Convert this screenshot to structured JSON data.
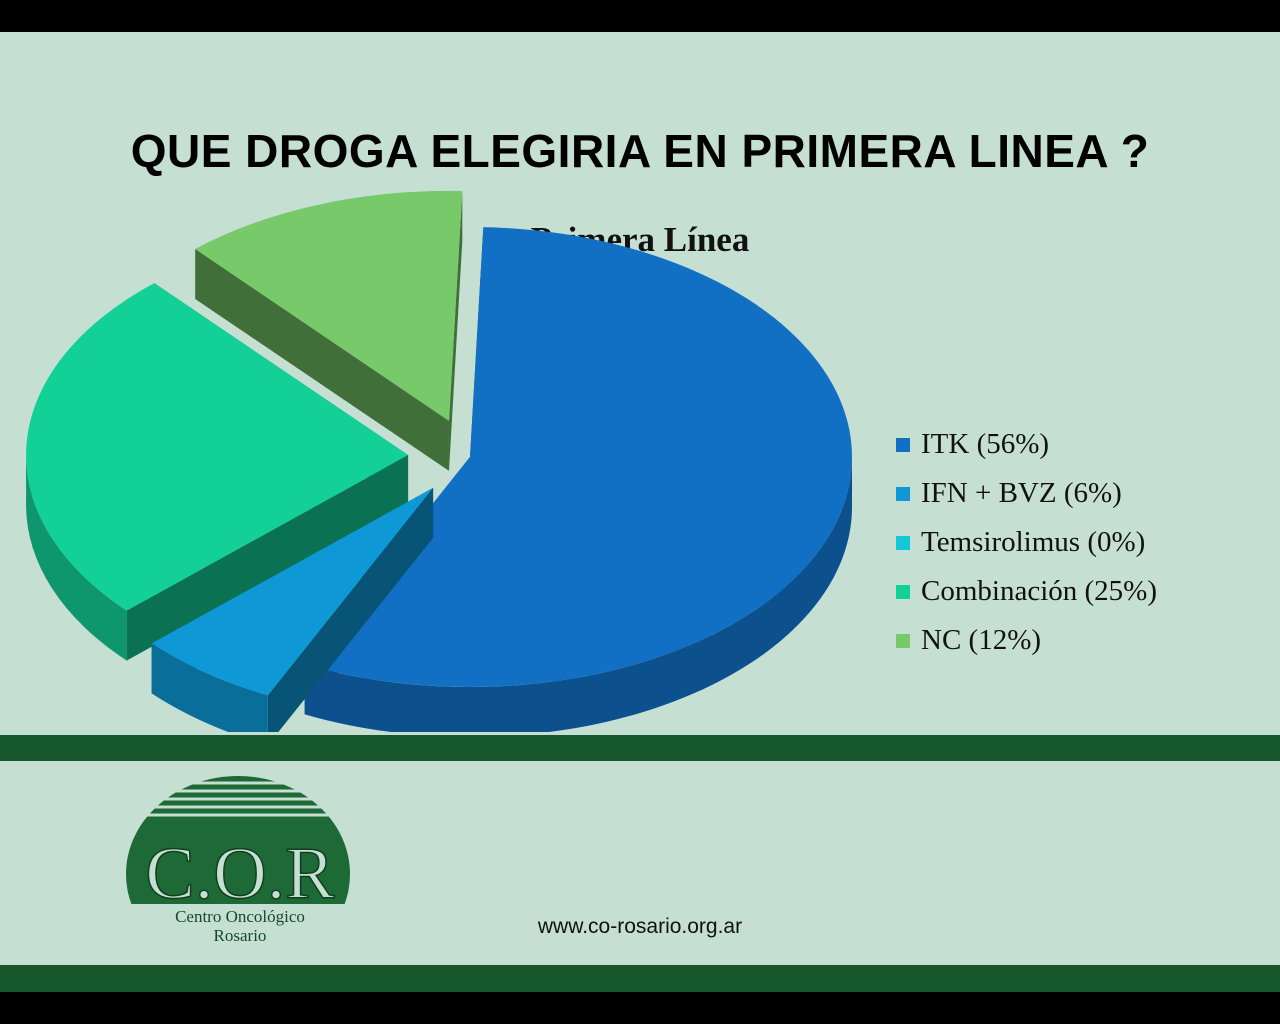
{
  "slide": {
    "title": "QUE DROGA ELEGIRIA EN PRIMERA LINEA ?",
    "footer_url": "www.co-rosario.org.ar"
  },
  "logo": {
    "letters": "C.O.R",
    "line1": "Centro Oncológico",
    "line2": "Rosario"
  },
  "chart_data": {
    "type": "pie",
    "title": "Primera Línea",
    "exploded": true,
    "style": "3d",
    "legend_position": "right",
    "slices": [
      {
        "label": "ITK (56%)",
        "name": "ITK",
        "value": 56,
        "color": "#1170c4"
      },
      {
        "label": "IFN + BVZ (6%)",
        "name": "IFN + BVZ",
        "value": 6,
        "color": "#0e99d6"
      },
      {
        "label": "Temsirolimus (0%)",
        "name": "Temsirolimus",
        "value": 0,
        "color": "#12c7d8"
      },
      {
        "label": "Combinación (25%)",
        "name": "Combinación",
        "value": 25,
        "color": "#13d096"
      },
      {
        "label": "NC (12%)",
        "name": "NC",
        "value": 12,
        "color": "#77c96a"
      }
    ]
  },
  "colors": {
    "slide_background": "#c6dfd3",
    "band": "#16572c",
    "letterbox": "#000000"
  }
}
